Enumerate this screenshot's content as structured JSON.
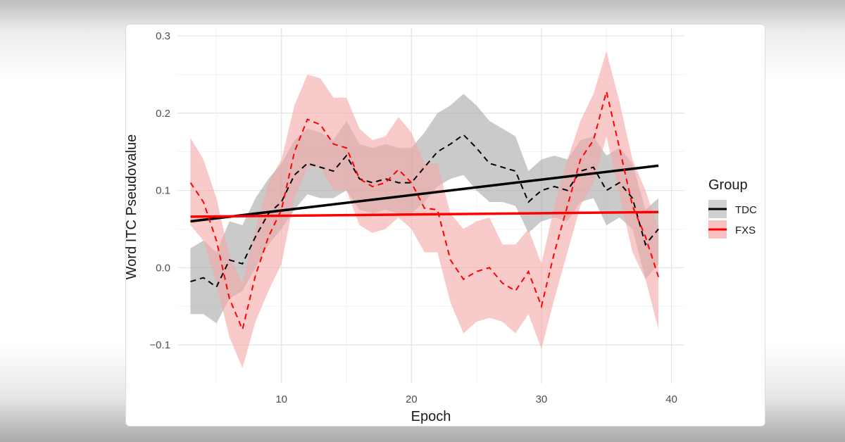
{
  "chart_data": {
    "type": "line",
    "xlabel": "Epoch",
    "ylabel": "Word ITC Pseudovalue",
    "xlim": [
      2,
      41
    ],
    "ylim": [
      -0.15,
      0.31
    ],
    "xticks": [
      10,
      20,
      30,
      40
    ],
    "yticks": [
      -0.1,
      0.0,
      0.1,
      0.2,
      0.3
    ],
    "ytick_labels": [
      "−0.1",
      "0.0",
      "0.1",
      "0.2",
      "0.3"
    ],
    "grid": true,
    "legend": {
      "title": "Group",
      "placement": "right"
    },
    "series": [
      {
        "name": "TDC",
        "color": "#000000",
        "band_color": "#a6a6a6",
        "x": [
          3,
          4,
          5,
          6,
          7,
          8,
          9,
          10,
          11,
          12,
          13,
          14,
          15,
          16,
          17,
          18,
          19,
          20,
          21,
          22,
          23,
          24,
          25,
          26,
          27,
          28,
          29,
          30,
          31,
          32,
          33,
          34,
          35,
          36,
          37,
          38,
          39
        ],
        "mean": [
          -0.018,
          -0.013,
          -0.025,
          0.01,
          0.005,
          0.04,
          0.07,
          0.085,
          0.12,
          0.135,
          0.13,
          0.125,
          0.145,
          0.115,
          0.11,
          0.115,
          0.11,
          0.11,
          0.13,
          0.15,
          0.16,
          0.172,
          0.155,
          0.135,
          0.13,
          0.125,
          0.085,
          0.1,
          0.105,
          0.1,
          0.125,
          0.13,
          0.1,
          0.11,
          0.09,
          0.03,
          0.05
        ],
        "lower": [
          -0.06,
          -0.06,
          -0.072,
          -0.04,
          -0.03,
          0.0,
          0.03,
          0.05,
          0.075,
          0.095,
          0.09,
          0.09,
          0.1,
          0.075,
          0.07,
          0.075,
          0.07,
          0.07,
          0.085,
          0.105,
          0.115,
          0.12,
          0.1,
          0.085,
          0.085,
          0.08,
          0.045,
          0.06,
          0.065,
          0.06,
          0.085,
          0.09,
          0.055,
          0.065,
          0.05,
          -0.015,
          0.005
        ],
        "upper": [
          0.025,
          0.035,
          0.02,
          0.06,
          0.055,
          0.09,
          0.115,
          0.135,
          0.165,
          0.18,
          0.175,
          0.165,
          0.19,
          0.16,
          0.155,
          0.16,
          0.155,
          0.155,
          0.175,
          0.2,
          0.21,
          0.225,
          0.21,
          0.19,
          0.18,
          0.17,
          0.125,
          0.14,
          0.145,
          0.14,
          0.165,
          0.17,
          0.145,
          0.155,
          0.135,
          0.075,
          0.09
        ],
        "trend": {
          "x": [
            3,
            39
          ],
          "y": [
            0.06,
            0.132
          ]
        }
      },
      {
        "name": "FXS",
        "color": "#ff0000",
        "band_color": "#f4a6a6",
        "x": [
          3,
          4,
          5,
          6,
          7,
          8,
          9,
          10,
          11,
          12,
          13,
          14,
          15,
          16,
          17,
          18,
          19,
          20,
          21,
          22,
          23,
          24,
          25,
          26,
          27,
          28,
          29,
          30,
          31,
          32,
          33,
          34,
          35,
          36,
          37,
          38,
          39
        ],
        "mean": [
          0.11,
          0.085,
          0.035,
          -0.04,
          -0.08,
          -0.01,
          0.04,
          0.075,
          0.15,
          0.192,
          0.185,
          0.16,
          0.155,
          0.115,
          0.105,
          0.11,
          0.127,
          0.11,
          0.077,
          0.075,
          0.01,
          -0.015,
          -0.005,
          0.0,
          -0.02,
          -0.03,
          -0.005,
          -0.05,
          0.02,
          0.08,
          0.14,
          0.165,
          0.228,
          0.155,
          0.08,
          0.04,
          -0.012
        ],
        "lower": [
          0.055,
          0.035,
          -0.02,
          -0.09,
          -0.13,
          -0.07,
          -0.03,
          0.005,
          0.09,
          0.13,
          0.13,
          0.1,
          0.1,
          0.055,
          0.045,
          0.05,
          0.065,
          0.05,
          0.02,
          0.02,
          -0.045,
          -0.085,
          -0.07,
          -0.065,
          -0.07,
          -0.085,
          -0.06,
          -0.105,
          -0.04,
          0.02,
          0.08,
          0.11,
          0.17,
          0.095,
          0.02,
          -0.015,
          -0.08
        ],
        "upper": [
          0.168,
          0.14,
          0.09,
          0.015,
          -0.02,
          0.05,
          0.11,
          0.14,
          0.21,
          0.25,
          0.245,
          0.22,
          0.22,
          0.18,
          0.165,
          0.17,
          0.195,
          0.175,
          0.135,
          0.135,
          0.07,
          0.05,
          0.06,
          0.065,
          0.03,
          0.03,
          0.05,
          0.005,
          0.08,
          0.14,
          0.19,
          0.225,
          0.28,
          0.215,
          0.14,
          0.1,
          0.05
        ],
        "trend": {
          "x": [
            3,
            39
          ],
          "y": [
            0.066,
            0.072
          ]
        }
      }
    ]
  }
}
